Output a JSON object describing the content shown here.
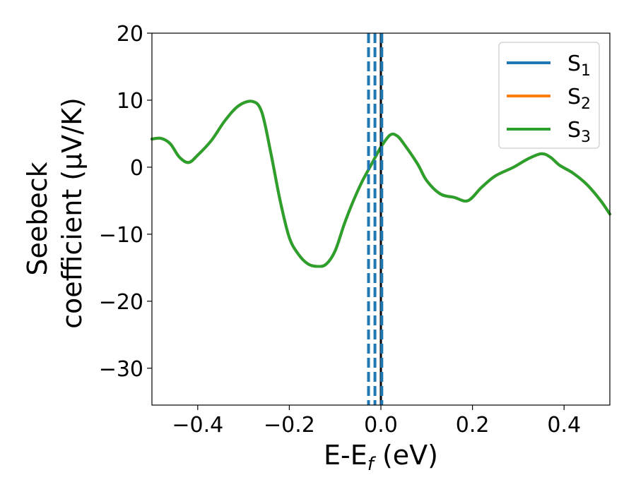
{
  "chart_data": {
    "type": "line",
    "xlabel_main": "E-E",
    "xlabel_sub": "f",
    "xlabel_tail": " (eV)",
    "ylabel_line1": "Seebeck",
    "ylabel_line2": "coefficient  (μV/K)",
    "xlim": [
      -0.5,
      0.5
    ],
    "ylim": [
      -35.5,
      20
    ],
    "xticks": [
      -0.4,
      -0.2,
      0.0,
      0.2,
      0.4
    ],
    "xtick_labels": [
      "−0.4",
      "−0.2",
      "0.0",
      "0.2",
      "0.4"
    ],
    "yticks": [
      20,
      10,
      0,
      -10,
      -20,
      -30
    ],
    "ytick_labels": [
      "20",
      "10",
      "0",
      "−10",
      "−20",
      "−30"
    ],
    "grid": false,
    "legend_position": "top-right",
    "fermi_line": {
      "x": 0.0,
      "color": "#000000"
    },
    "dashed_lines": {
      "x": [
        -0.027,
        -0.013,
        0.002
      ],
      "color": "#1f77b4"
    },
    "series": [
      {
        "name_main": "S",
        "name_sub": "1",
        "color": "#1f77b4"
      },
      {
        "name_main": "S",
        "name_sub": "2",
        "color": "#ff7f0e"
      },
      {
        "name_main": "S",
        "name_sub": "3",
        "color": "#2ca02c"
      }
    ],
    "x": [
      -0.5,
      -0.48,
      -0.46,
      -0.44,
      -0.42,
      -0.4,
      -0.37,
      -0.34,
      -0.31,
      -0.28,
      -0.26,
      -0.24,
      -0.22,
      -0.2,
      -0.18,
      -0.16,
      -0.14,
      -0.12,
      -0.1,
      -0.08,
      -0.06,
      -0.04,
      -0.02,
      0.0,
      0.02,
      0.035,
      0.05,
      0.08,
      0.1,
      0.13,
      0.16,
      0.19,
      0.22,
      0.25,
      0.29,
      0.32,
      0.35,
      0.37,
      0.39,
      0.42,
      0.45,
      0.48,
      0.5
    ],
    "y": [
      4.2,
      4.3,
      3.5,
      1.5,
      0.7,
      1.8,
      4.0,
      7.0,
      9.2,
      9.8,
      8.2,
      2.0,
      -5.0,
      -10.5,
      -13.0,
      -14.4,
      -14.8,
      -14.5,
      -12.5,
      -8.5,
      -5.0,
      -2.0,
      0.5,
      3.0,
      4.8,
      4.7,
      3.5,
      0.5,
      -2.0,
      -4.0,
      -4.5,
      -5.0,
      -3.0,
      -1.3,
      0.0,
      1.2,
      2.0,
      1.5,
      0.3,
      -0.9,
      -2.6,
      -5.0,
      -7.0
    ]
  }
}
